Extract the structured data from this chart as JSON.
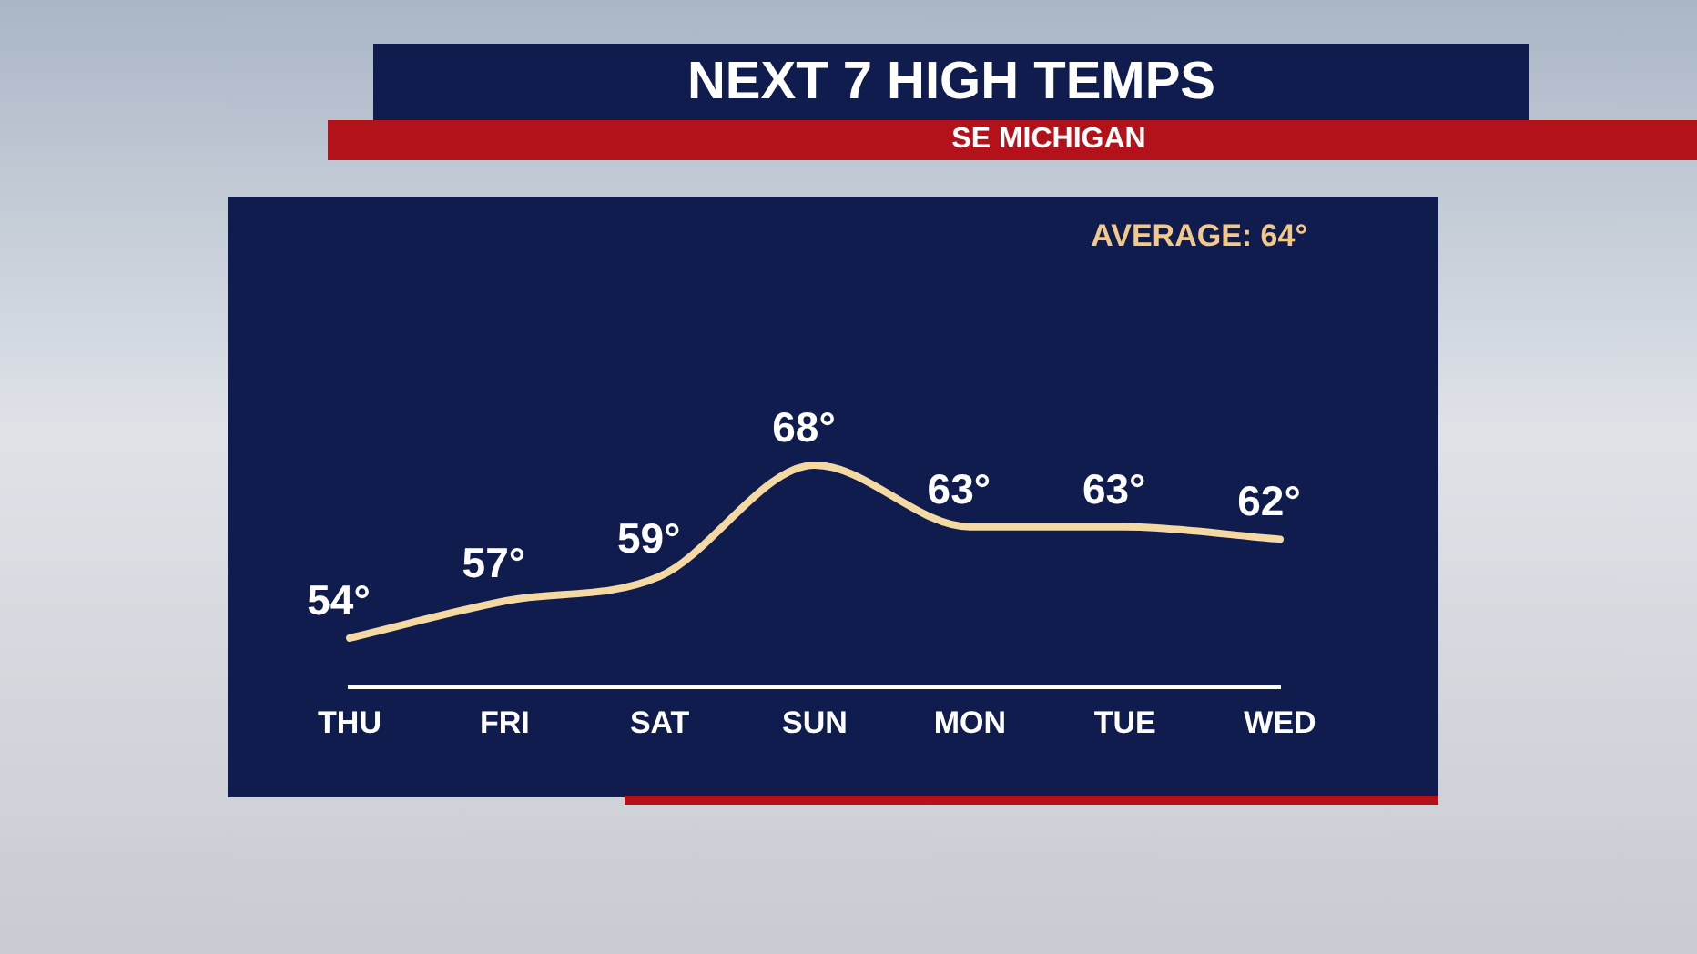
{
  "chart_data": {
    "type": "line",
    "title": "NEXT 7 HIGH TEMPS",
    "subtitle": "SE MICHIGAN",
    "annotations": [
      "AVERAGE: 64°"
    ],
    "categories": [
      "THU",
      "FRI",
      "SAT",
      "SUN",
      "MON",
      "TUE",
      "WED"
    ],
    "series": [
      {
        "color": "#f5d9a3",
        "values": [
          54,
          57,
          59,
          68,
          63,
          63,
          62
        ],
        "value_labels": [
          "54°",
          "57°",
          "59°",
          "68°",
          "63°",
          "63°",
          "62°"
        ]
      }
    ],
    "marker": "none",
    "grid": false,
    "legend": false,
    "tick_labels": "x"
  }
}
